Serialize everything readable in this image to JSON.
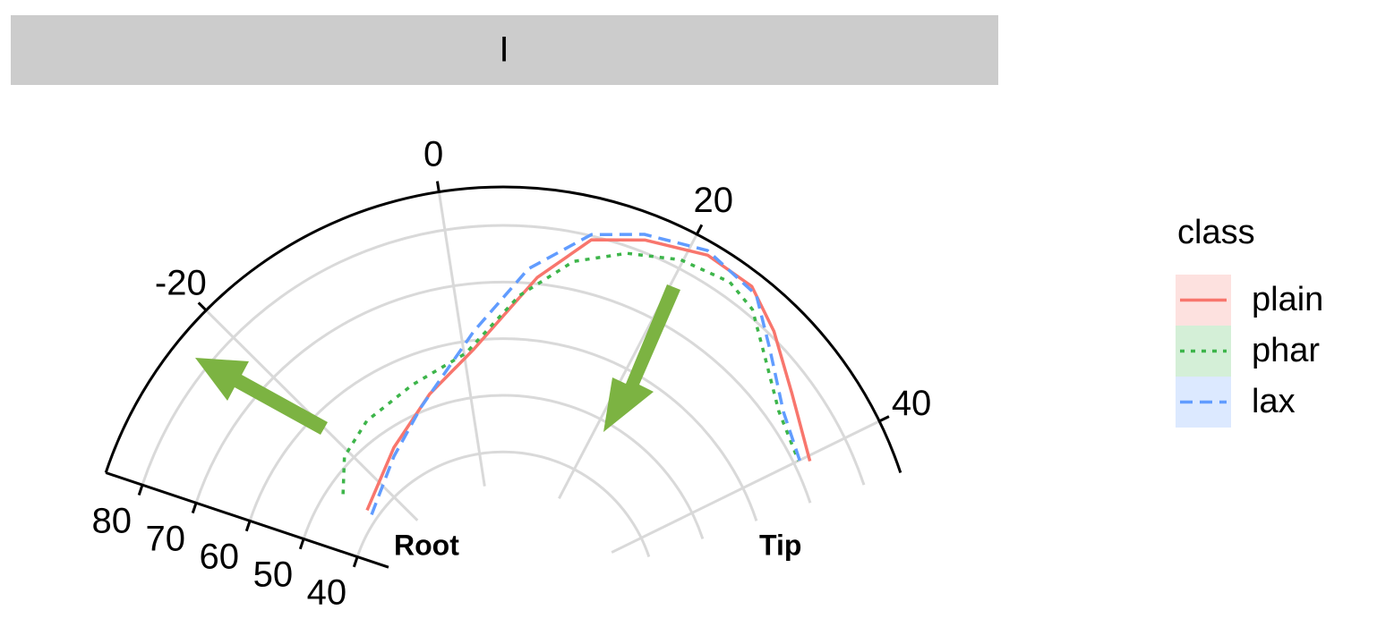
{
  "chart_data": {
    "type": "polar-line",
    "strip_title": "I",
    "legend_title": "class",
    "annotations": [
      "Root",
      "Tip"
    ],
    "xlim": [
      -34.5,
      44.2
    ],
    "xticks": [
      -20,
      0,
      20,
      40
    ],
    "ylim": [
      34.2,
      86.8
    ],
    "yticks": [
      40,
      50,
      60,
      70,
      80
    ],
    "grid": true,
    "series": [
      {
        "name": "plain",
        "color": "#F8766D",
        "linestyle": "solid",
        "x": [
          -25.4,
          -14.2,
          -5.7,
          1.3,
          8.1,
          12.3,
          16.5,
          21.5,
          25.7,
          29.4,
          34.4,
          40.5
        ],
        "values": [
          42.2,
          46.8,
          52.4,
          58.5,
          71.1,
          79.3,
          82.1,
          84.5,
          84.3,
          80.9,
          76.1,
          72.7
        ]
      },
      {
        "name": "phar",
        "color": "#3DB54A",
        "linestyle": "dotted",
        "x": [
          -25.5,
          -20.9,
          -15.2,
          -7.5,
          0.2,
          6.5,
          11.2,
          15.5,
          19.8,
          24.1,
          26.9,
          30.5,
          35.0,
          40.0
        ],
        "values": [
          47.3,
          51.3,
          53.4,
          55.0,
          57.9,
          67.7,
          74.9,
          78.8,
          81.5,
          82.6,
          81.2,
          76.5,
          72.4,
          70.9
        ]
      },
      {
        "name": "lax",
        "color": "#619CFF",
        "linestyle": "dashed",
        "x": [
          -25.6,
          -15.1,
          -7.5,
          1.5,
          7.2,
          12.2,
          16.3,
          21.3,
          26.4,
          30.2,
          35.3,
          40.6
        ],
        "values": [
          41.1,
          45.5,
          50.8,
          61.6,
          72.5,
          80.2,
          83.0,
          85.2,
          83.6,
          78.2,
          73.0,
          71.0
        ]
      }
    ]
  }
}
